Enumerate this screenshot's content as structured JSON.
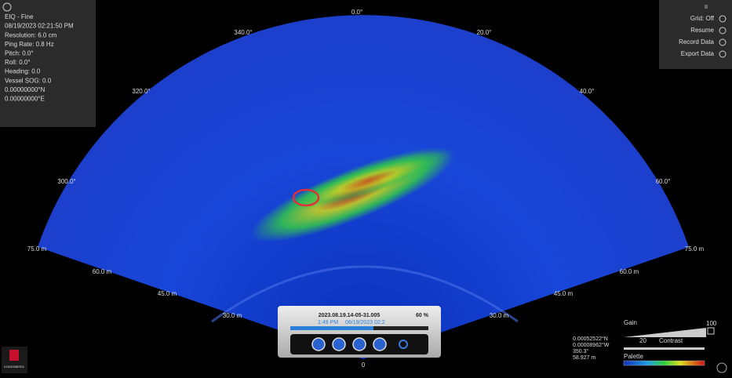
{
  "info_panel": {
    "lines": [
      "EIQ - Fine",
      "08/19/2023 02:21:50 PM",
      "Resolution: 6.0 cm",
      "Ping Rate: 0.8 Hz",
      "Pitch:   0.0°",
      "Roll:   0.0°",
      "Heading: 0.0",
      "Vessel SOG: 0.0",
      "0.00000000°N",
      "0.00000000°E"
    ]
  },
  "menu": {
    "items": [
      "Grid: Off",
      "Resume",
      "Record Data",
      "Export Data"
    ]
  },
  "sonar": {
    "angle_labels": [
      "0.0°",
      "340.0°",
      "20.0°",
      "320.0°",
      "40.0°",
      "300.0°",
      "60.0°"
    ],
    "range_labels_left": [
      "75.0 m",
      "60.0 m",
      "45.0 m",
      "30.0 m"
    ],
    "range_labels_right": [
      "75.0 m",
      "60.0 m",
      "45.0 m",
      "30.0 m"
    ],
    "apex_label": "0"
  },
  "playback": {
    "filename": "2023.08.19.14-05-31.005",
    "percent": "60 %",
    "time": "1:49 PM",
    "date": "08/19/2023 02:2"
  },
  "position": {
    "lines": [
      "0.00052522°N",
      "0.00008962°W",
      "350.3°",
      "58.927 m"
    ]
  },
  "controls": {
    "gain_label": "Gain",
    "gain_value": "100",
    "contrast_value": "20",
    "contrast_label": "Contrast",
    "palette_label": "Palette"
  },
  "logo": {
    "text": "KONGSBERG"
  }
}
